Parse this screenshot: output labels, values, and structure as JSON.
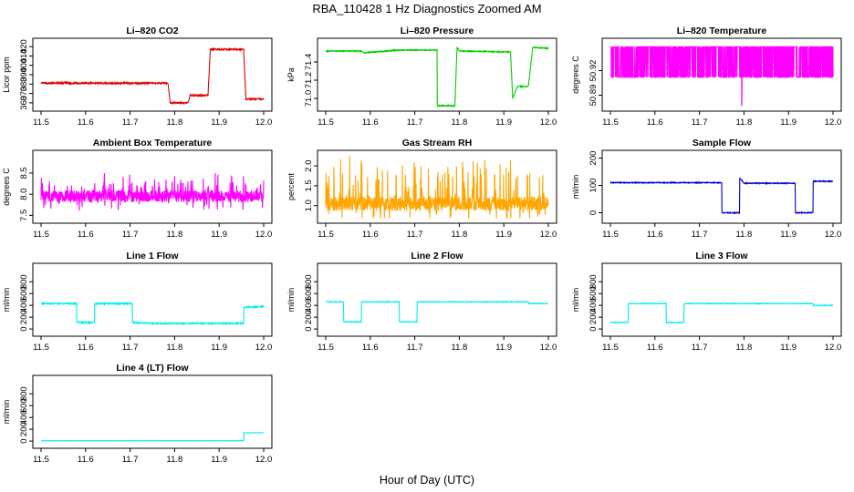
{
  "figure": {
    "title": "RBA_110428  1 Hz Diagnostics Zoomed AM",
    "xlabel": "Hour of Day (UTC)"
  },
  "chart_data": [
    {
      "type": "line",
      "title": "Li–820 CO2",
      "ylabel": "Licor ppm",
      "color": "#e00000",
      "xlim": [
        11.5,
        12.0
      ],
      "ylim": [
        355,
        425
      ],
      "xticks": [
        "11.5",
        "11.6",
        "11.7",
        "11.8",
        "11.9",
        "12.0"
      ],
      "yticks": [
        "360",
        "370",
        "380",
        "390",
        "400",
        "410",
        "420"
      ],
      "ytick_values": [
        360,
        370,
        380,
        390,
        400,
        410,
        420
      ],
      "steps": [
        [
          11.5,
          381
        ],
        [
          11.785,
          381
        ],
        [
          11.79,
          360
        ],
        [
          11.83,
          360
        ],
        [
          11.835,
          368
        ],
        [
          11.875,
          368
        ],
        [
          11.88,
          417
        ],
        [
          11.955,
          417
        ],
        [
          11.96,
          364
        ],
        [
          12.0,
          364
        ]
      ],
      "noise": 0.8
    },
    {
      "type": "line",
      "title": "Li–820 Pressure",
      "ylabel": "kPa",
      "color": "#00cc00",
      "xlim": [
        11.5,
        12.0
      ],
      "ylim": [
        70.9,
        71.62
      ],
      "xticks": [
        "11.5",
        "11.6",
        "11.7",
        "11.8",
        "11.9",
        "12.0"
      ],
      "yticks": [
        "71.0",
        "71.2",
        "71.4"
      ],
      "ytick_values": [
        71.0,
        71.2,
        71.4
      ],
      "steps": [
        [
          11.5,
          71.52
        ],
        [
          11.58,
          71.52
        ],
        [
          11.585,
          71.5
        ],
        [
          11.64,
          71.52
        ],
        [
          11.66,
          71.53
        ],
        [
          11.75,
          71.53
        ],
        [
          11.752,
          70.92
        ],
        [
          11.79,
          70.92
        ],
        [
          11.795,
          71.56
        ],
        [
          11.8,
          71.52
        ],
        [
          11.915,
          71.51
        ],
        [
          11.92,
          71.0
        ],
        [
          11.93,
          71.13
        ],
        [
          11.955,
          71.13
        ],
        [
          11.965,
          71.56
        ],
        [
          12.0,
          71.55
        ]
      ],
      "noise": 0.005
    },
    {
      "type": "line",
      "title": "Li–820 Temperature",
      "ylabel": "degrees C",
      "color": "#ff00ff",
      "xlim": [
        11.5,
        12.0
      ],
      "ylim": [
        50.875,
        50.955
      ],
      "xticks": [
        "11.5",
        "11.6",
        "11.7",
        "11.8",
        "11.9",
        "12.0"
      ],
      "yticks": [
        "50.89",
        "50.92"
      ],
      "ytick_values": [
        50.89,
        50.92
      ],
      "binary": [
        50.912,
        50.949
      ],
      "dip": [
        11.795,
        50.877
      ]
    },
    {
      "type": "line",
      "title": "Ambient Box Temperature",
      "ylabel": "degrees C",
      "color": "#ff00ff",
      "xlim": [
        11.5,
        12.0
      ],
      "ylim": [
        7.4,
        8.95
      ],
      "xticks": [
        "11.5",
        "11.6",
        "11.7",
        "11.8",
        "11.9",
        "12.0"
      ],
      "yticks": [
        "7.5",
        "8.0",
        "8.5"
      ],
      "ytick_values": [
        7.5,
        8.0,
        8.5
      ],
      "steps": [
        [
          11.5,
          7.95
        ],
        [
          12.0,
          7.95
        ]
      ],
      "noise": 0.14,
      "spikes": 0.35
    },
    {
      "type": "line",
      "title": "Gas Stream RH",
      "ylabel": "percent",
      "color": "#ffa500",
      "xlim": [
        11.5,
        12.0
      ],
      "ylim": [
        0.65,
        2.3
      ],
      "xticks": [
        "11.5",
        "11.6",
        "11.7",
        "11.8",
        "11.9",
        "12.0"
      ],
      "yticks": [
        "1.0",
        "1.5",
        "2.0"
      ],
      "ytick_values": [
        1.0,
        1.5,
        2.0
      ],
      "steps": [
        [
          11.5,
          1.05
        ],
        [
          12.0,
          1.05
        ]
      ],
      "noise": 0.18,
      "spikes": 0.8
    },
    {
      "type": "line",
      "title": "Sample Flow",
      "ylabel": "ml/min",
      "color": "#0000cc",
      "xlim": [
        11.5,
        12.0
      ],
      "ylim": [
        -25,
        215
      ],
      "xticks": [
        "11.5",
        "11.6",
        "11.7",
        "11.8",
        "11.9",
        "12.0"
      ],
      "yticks": [
        "0",
        "100",
        "200"
      ],
      "ytick_values": [
        0,
        100,
        200
      ],
      "steps": [
        [
          11.5,
          110
        ],
        [
          11.75,
          110
        ],
        [
          11.752,
          0
        ],
        [
          11.79,
          0
        ],
        [
          11.792,
          125
        ],
        [
          11.8,
          108
        ],
        [
          11.915,
          108
        ],
        [
          11.918,
          0
        ],
        [
          11.955,
          0
        ],
        [
          11.958,
          115
        ],
        [
          12.0,
          115
        ]
      ],
      "noise": 1.5
    },
    {
      "type": "line",
      "title": "Line 1 Flow",
      "ylabel": "ml/min",
      "color": "#00eeee",
      "xlim": [
        11.5,
        12.0
      ],
      "ylim": [
        -60,
        1050
      ],
      "xticks": [
        "11.5",
        "11.6",
        "11.7",
        "11.8",
        "11.9",
        "12.0"
      ],
      "yticks": [
        "0",
        "200",
        "400",
        "600",
        "800"
      ],
      "ytick_values": [
        0,
        200,
        400,
        600,
        800
      ],
      "steps": [
        [
          11.5,
          430
        ],
        [
          11.58,
          430
        ],
        [
          11.582,
          110
        ],
        [
          11.62,
          110
        ],
        [
          11.622,
          430
        ],
        [
          11.705,
          430
        ],
        [
          11.707,
          110
        ],
        [
          11.75,
          95
        ],
        [
          11.955,
          95
        ],
        [
          11.958,
          370
        ],
        [
          12.0,
          380
        ]
      ],
      "noise": 10
    },
    {
      "type": "line",
      "title": "Line 2 Flow",
      "ylabel": "ml/min",
      "color": "#00eeee",
      "xlim": [
        11.5,
        12.0
      ],
      "ylim": [
        -60,
        1050
      ],
      "xticks": [
        "11.5",
        "11.6",
        "11.7",
        "11.8",
        "11.9",
        "12.0"
      ],
      "yticks": [
        "0",
        "200",
        "400",
        "600",
        "800"
      ],
      "ytick_values": [
        0,
        200,
        400,
        600,
        800
      ],
      "steps": [
        [
          11.5,
          460
        ],
        [
          11.54,
          460
        ],
        [
          11.542,
          120
        ],
        [
          11.58,
          120
        ],
        [
          11.582,
          460
        ],
        [
          11.665,
          460
        ],
        [
          11.667,
          120
        ],
        [
          11.705,
          120
        ],
        [
          11.707,
          460
        ],
        [
          11.955,
          460
        ],
        [
          11.958,
          430
        ],
        [
          12.0,
          430
        ]
      ],
      "noise": 5
    },
    {
      "type": "line",
      "title": "Line 3 Flow",
      "ylabel": "ml/min",
      "color": "#00eeee",
      "xlim": [
        11.5,
        12.0
      ],
      "ylim": [
        -60,
        1050
      ],
      "xticks": [
        "11.5",
        "11.6",
        "11.7",
        "11.8",
        "11.9",
        "12.0"
      ],
      "yticks": [
        "0",
        "200",
        "400",
        "600",
        "800"
      ],
      "ytick_values": [
        0,
        200,
        400,
        600,
        800
      ],
      "steps": [
        [
          11.5,
          110
        ],
        [
          11.54,
          110
        ],
        [
          11.542,
          430
        ],
        [
          11.625,
          430
        ],
        [
          11.627,
          110
        ],
        [
          11.665,
          110
        ],
        [
          11.667,
          430
        ],
        [
          11.955,
          430
        ],
        [
          11.958,
          400
        ],
        [
          12.0,
          400
        ]
      ],
      "noise": 5
    },
    {
      "type": "line",
      "title": "Line 4 (LT) Flow",
      "ylabel": "ml/min",
      "color": "#00eeee",
      "xlim": [
        11.5,
        12.0
      ],
      "ylim": [
        -60,
        1050
      ],
      "xticks": [
        "11.5",
        "11.6",
        "11.7",
        "11.8",
        "11.9",
        "12.0"
      ],
      "yticks": [
        "0",
        "200",
        "400",
        "600",
        "800"
      ],
      "ytick_values": [
        0,
        200,
        400,
        600,
        800
      ],
      "steps": [
        [
          11.5,
          5
        ],
        [
          11.955,
          5
        ],
        [
          11.958,
          140
        ],
        [
          12.0,
          140
        ]
      ],
      "noise": 2
    }
  ]
}
